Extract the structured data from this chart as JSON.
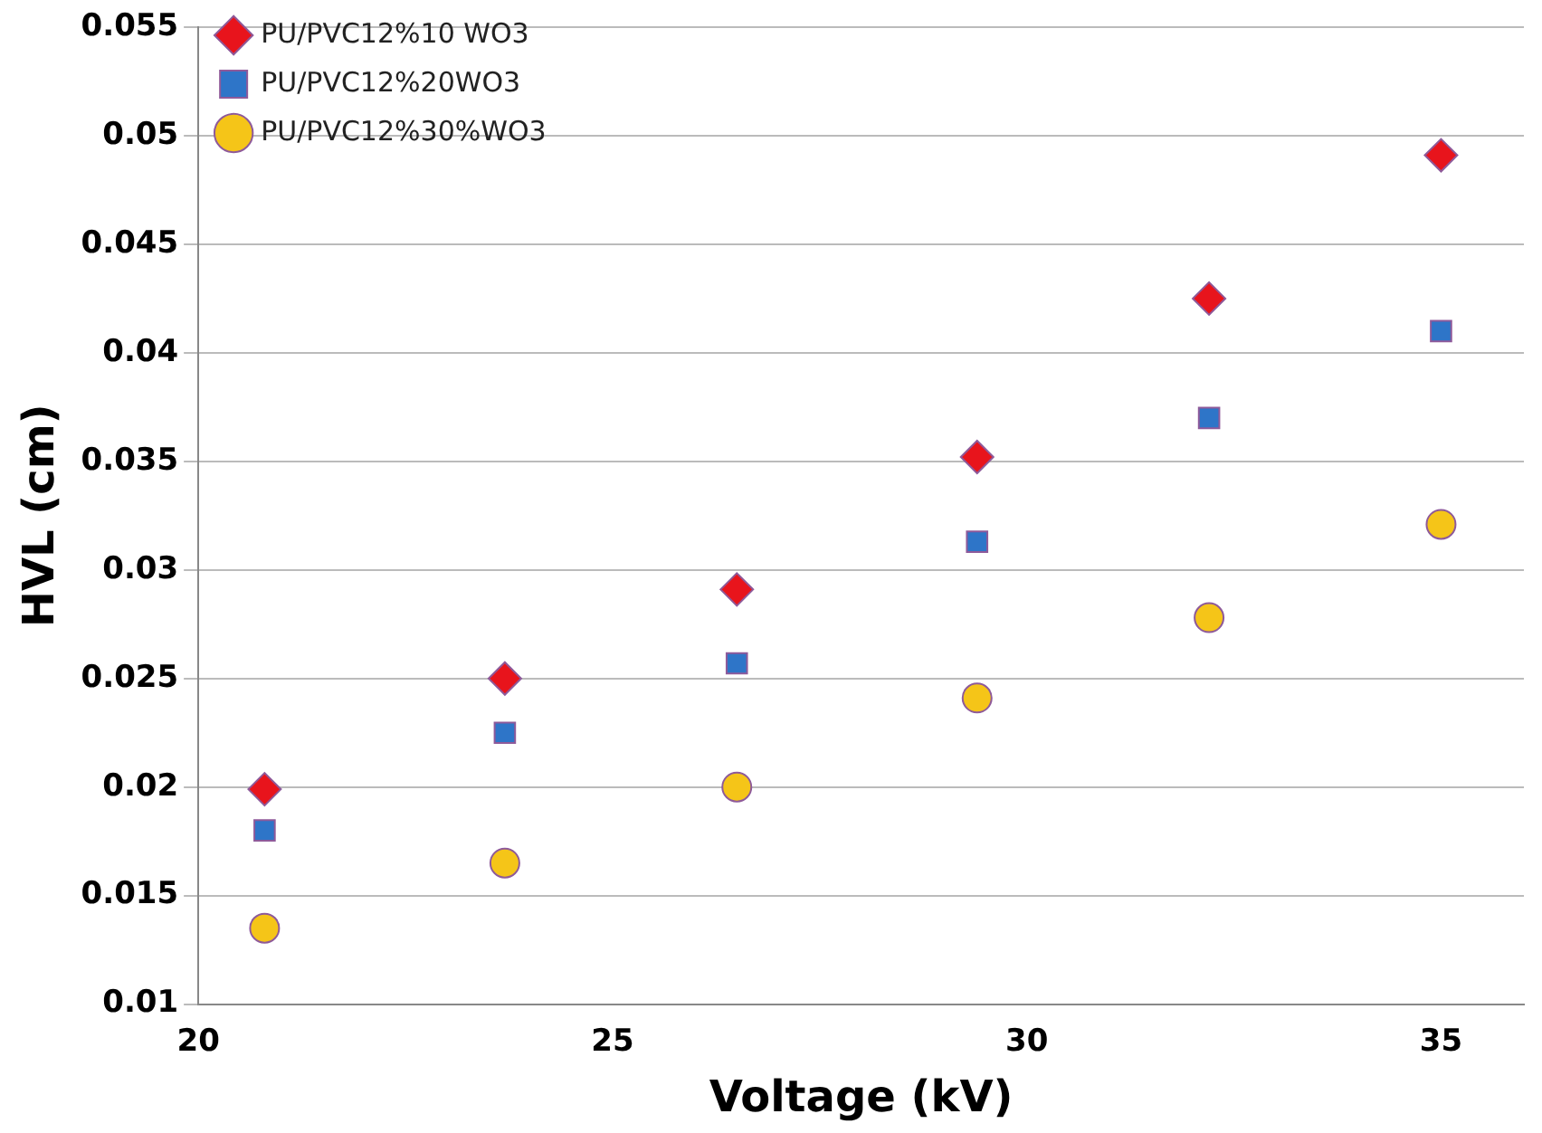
{
  "chart_data": {
    "type": "scatter",
    "xlabel": "Voltage (kV)",
    "ylabel": "HVL (cm)",
    "x": [
      20.8,
      23.7,
      26.5,
      29.4,
      32.2,
      35
    ],
    "series": [
      {
        "name": "PU/PVC12%10 WO3",
        "color": "#e8141c",
        "marker": "diamond",
        "values": [
          0.0199,
          0.025,
          0.0291,
          0.0352,
          0.0425,
          0.0491
        ]
      },
      {
        "name": "PU/PVC12%20WO3",
        "color": "#2e75c8",
        "marker": "square",
        "values": [
          0.018,
          0.0225,
          0.0257,
          0.0313,
          0.037,
          0.041
        ]
      },
      {
        "name": "PU/PVC12%30%WO3",
        "color": "#f5c518",
        "marker": "circle",
        "values": [
          0.0135,
          0.0165,
          0.02,
          0.0241,
          0.0278,
          0.0321
        ]
      }
    ],
    "xlim": [
      20,
      36
    ],
    "xticks": [
      20,
      25,
      30,
      35
    ],
    "ylim": [
      0.01,
      0.055
    ],
    "yticks": [
      0.01,
      0.015,
      0.02,
      0.025,
      0.03,
      0.035,
      0.04,
      0.045,
      0.05,
      0.055
    ],
    "grid": "y",
    "legend": "top left"
  }
}
